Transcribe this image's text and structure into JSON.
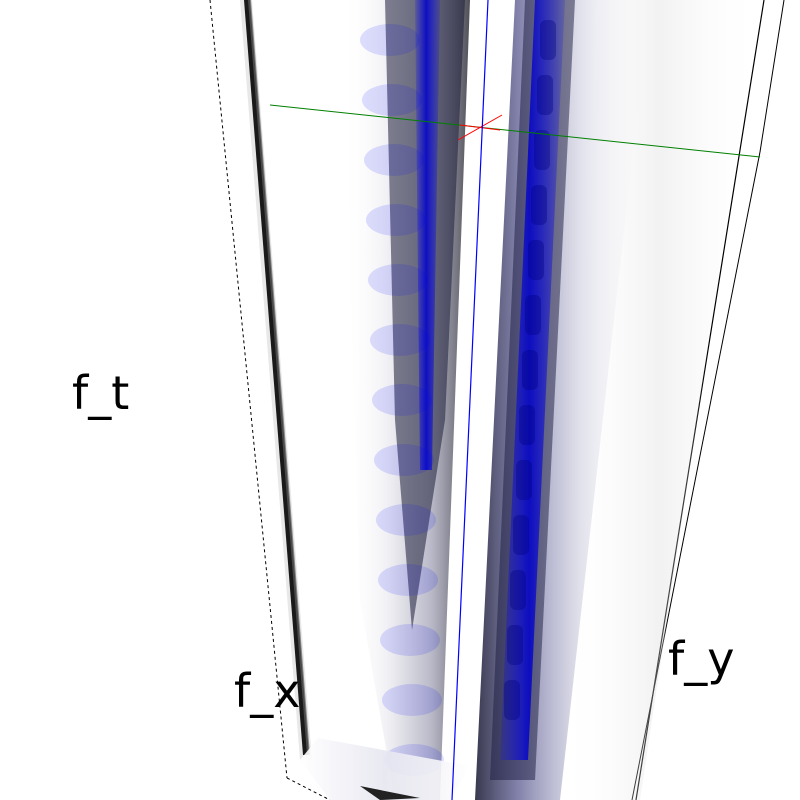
{
  "labels": {
    "t": "f_t",
    "x": "f_x",
    "y": "f_y"
  },
  "colors": {
    "background": "#ffffff",
    "volume_blue": "#0000ff",
    "volume_dark": "#000033",
    "bounding_box": "#000000",
    "axis_x": "#ff0000",
    "axis_y": "#008000",
    "axis_z": "#0000ff"
  }
}
